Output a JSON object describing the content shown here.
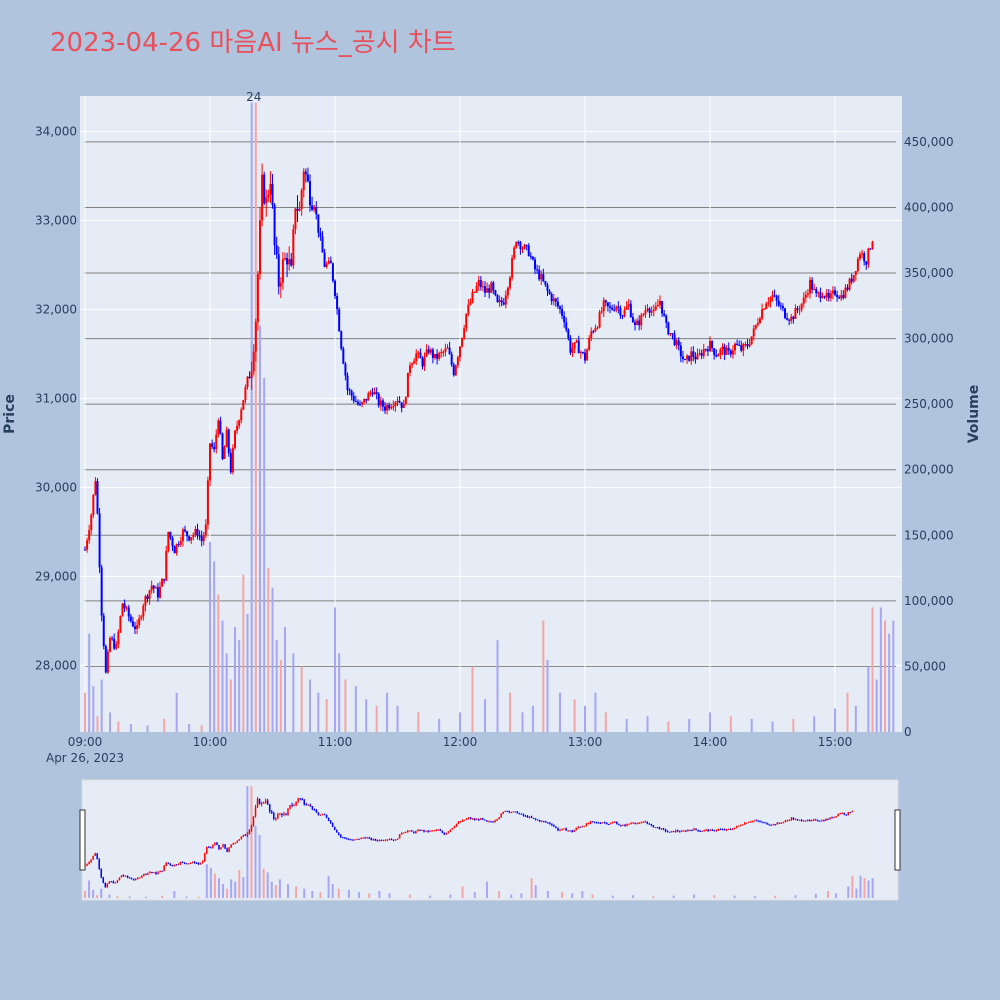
{
  "chart_data": {
    "type": "candlestick",
    "title": "2023-04-26 마음AI 뉴스_공시 차트",
    "ylabel": "Price",
    "y2label": "Volume",
    "ylim": [
      27250,
      34400
    ],
    "y2lim": [
      0,
      485000
    ],
    "price_ticks": [
      "28,000",
      "29,000",
      "30,000",
      "31,000",
      "32,000",
      "33,000",
      "34,000"
    ],
    "volume_ticks": [
      "0",
      "50,000",
      "100,000",
      "150,000",
      "200,000",
      "250,000",
      "300,000",
      "350,000",
      "400,000",
      "450,000"
    ],
    "x_ticks": [
      "09:00",
      "10:00",
      "11:00",
      "12:00",
      "13:00",
      "14:00",
      "15:00"
    ],
    "x_date_label": "Apr 26, 2023",
    "annotation": "24",
    "colors": {
      "up": "#ff0000",
      "down": "#0000ff",
      "up_volume": "#f4a6a6",
      "down_volume": "#a6a6f4",
      "plot_bg": "#e5ecf6",
      "grid": "#808080"
    },
    "price_path": [
      [
        "09:00",
        29300
      ],
      [
        "09:03",
        29700
      ],
      [
        "09:05",
        30100
      ],
      [
        "09:06",
        29700
      ],
      [
        "09:08",
        28600
      ],
      [
        "09:10",
        27900
      ],
      [
        "09:12",
        28300
      ],
      [
        "09:15",
        28200
      ],
      [
        "09:18",
        28700
      ],
      [
        "09:22",
        28500
      ],
      [
        "09:25",
        28400
      ],
      [
        "09:28",
        28700
      ],
      [
        "09:32",
        28900
      ],
      [
        "09:35",
        28800
      ],
      [
        "09:38",
        29000
      ],
      [
        "09:40",
        29500
      ],
      [
        "09:43",
        29300
      ],
      [
        "09:47",
        29500
      ],
      [
        "09:50",
        29450
      ],
      [
        "09:54",
        29500
      ],
      [
        "09:56",
        29400
      ],
      [
        "09:58",
        29550
      ],
      [
        "10:00",
        30500
      ],
      [
        "10:02",
        30400
      ],
      [
        "10:04",
        30800
      ],
      [
        "10:06",
        30300
      ],
      [
        "10:08",
        30600
      ],
      [
        "10:10",
        30200
      ],
      [
        "10:12",
        30600
      ],
      [
        "10:15",
        30900
      ],
      [
        "10:18",
        31200
      ],
      [
        "10:20",
        31400
      ],
      [
        "10:22",
        31900
      ],
      [
        "10:24",
        32900
      ],
      [
        "10:25",
        33400
      ],
      [
        "10:27",
        33200
      ],
      [
        "10:29",
        33500
      ],
      [
        "10:31",
        32700
      ],
      [
        "10:33",
        32300
      ],
      [
        "10:35",
        32500
      ],
      [
        "10:37",
        32600
      ],
      [
        "10:39",
        32400
      ],
      [
        "10:41",
        33200
      ],
      [
        "10:43",
        33100
      ],
      [
        "10:45",
        33600
      ],
      [
        "10:48",
        33300
      ],
      [
        "10:50",
        33200
      ],
      [
        "10:52",
        32900
      ],
      [
        "10:55",
        32500
      ],
      [
        "10:58",
        32500
      ],
      [
        "11:00",
        32200
      ],
      [
        "11:03",
        31600
      ],
      [
        "11:06",
        31100
      ],
      [
        "11:09",
        31000
      ],
      [
        "11:12",
        30900
      ],
      [
        "11:15",
        31000
      ],
      [
        "11:18",
        31100
      ],
      [
        "11:21",
        30950
      ],
      [
        "11:24",
        30900
      ],
      [
        "11:27",
        30950
      ],
      [
        "11:30",
        31000
      ],
      [
        "11:33",
        30900
      ],
      [
        "11:36",
        31400
      ],
      [
        "11:39",
        31500
      ],
      [
        "11:42",
        31400
      ],
      [
        "11:45",
        31550
      ],
      [
        "11:48",
        31450
      ],
      [
        "11:51",
        31500
      ],
      [
        "11:54",
        31550
      ],
      [
        "11:57",
        31300
      ],
      [
        "12:00",
        31600
      ],
      [
        "12:03",
        31950
      ],
      [
        "12:06",
        32150
      ],
      [
        "12:09",
        32300
      ],
      [
        "12:12",
        32200
      ],
      [
        "12:15",
        32250
      ],
      [
        "12:18",
        32050
      ],
      [
        "12:21",
        32100
      ],
      [
        "12:24",
        32400
      ],
      [
        "12:27",
        32800
      ],
      [
        "12:30",
        32700
      ],
      [
        "12:33",
        32650
      ],
      [
        "12:36",
        32450
      ],
      [
        "12:39",
        32350
      ],
      [
        "12:42",
        32200
      ],
      [
        "12:45",
        32100
      ],
      [
        "12:48",
        32000
      ],
      [
        "12:50",
        31900
      ],
      [
        "12:53",
        31550
      ],
      [
        "12:56",
        31600
      ],
      [
        "13:00",
        31450
      ],
      [
        "13:03",
        31750
      ],
      [
        "13:06",
        31850
      ],
      [
        "13:09",
        32050
      ],
      [
        "13:12",
        32000
      ],
      [
        "13:15",
        32050
      ],
      [
        "13:18",
        31950
      ],
      [
        "13:21",
        32050
      ],
      [
        "13:24",
        31800
      ],
      [
        "13:27",
        31900
      ],
      [
        "13:30",
        32050
      ],
      [
        "13:33",
        31950
      ],
      [
        "13:36",
        32100
      ],
      [
        "13:39",
        31800
      ],
      [
        "13:42",
        31700
      ],
      [
        "13:45",
        31550
      ],
      [
        "13:48",
        31400
      ],
      [
        "13:51",
        31500
      ],
      [
        "13:54",
        31450
      ],
      [
        "13:57",
        31550
      ],
      [
        "14:00",
        31600
      ],
      [
        "14:03",
        31500
      ],
      [
        "14:06",
        31550
      ],
      [
        "14:09",
        31500
      ],
      [
        "14:12",
        31600
      ],
      [
        "14:15",
        31550
      ],
      [
        "14:18",
        31600
      ],
      [
        "14:21",
        31750
      ],
      [
        "14:24",
        31950
      ],
      [
        "14:27",
        32100
      ],
      [
        "14:30",
        32150
      ],
      [
        "14:33",
        32050
      ],
      [
        "14:36",
        31950
      ],
      [
        "14:39",
        31900
      ],
      [
        "14:42",
        32000
      ],
      [
        "14:45",
        32100
      ],
      [
        "14:48",
        32300
      ],
      [
        "14:51",
        32150
      ],
      [
        "14:54",
        32200
      ],
      [
        "14:57",
        32100
      ],
      [
        "15:00",
        32200
      ],
      [
        "15:03",
        32150
      ],
      [
        "15:06",
        32250
      ],
      [
        "15:09",
        32400
      ],
      [
        "15:12",
        32650
      ],
      [
        "15:15",
        32550
      ],
      [
        "15:18",
        32800
      ]
    ],
    "volume_bars": [
      [
        "09:00",
        30000
      ],
      [
        "09:02",
        75000
      ],
      [
        "09:04",
        35000
      ],
      [
        "09:06",
        12000
      ],
      [
        "09:08",
        40000
      ],
      [
        "09:12",
        15000
      ],
      [
        "09:16",
        8000
      ],
      [
        "09:22",
        6000
      ],
      [
        "09:30",
        5000
      ],
      [
        "09:38",
        10000
      ],
      [
        "09:44",
        30000
      ],
      [
        "09:50",
        6000
      ],
      [
        "09:56",
        5000
      ],
      [
        "10:00",
        145000
      ],
      [
        "10:02",
        130000
      ],
      [
        "10:04",
        105000
      ],
      [
        "10:06",
        85000
      ],
      [
        "10:08",
        60000
      ],
      [
        "10:10",
        40000
      ],
      [
        "10:12",
        80000
      ],
      [
        "10:14",
        70000
      ],
      [
        "10:16",
        120000
      ],
      [
        "10:18",
        90000
      ],
      [
        "10:20",
        480000
      ],
      [
        "10:22",
        480000
      ],
      [
        "10:24",
        310000
      ],
      [
        "10:26",
        270000
      ],
      [
        "10:28",
        125000
      ],
      [
        "10:30",
        110000
      ],
      [
        "10:32",
        70000
      ],
      [
        "10:34",
        55000
      ],
      [
        "10:36",
        80000
      ],
      [
        "10:40",
        60000
      ],
      [
        "10:44",
        50000
      ],
      [
        "10:48",
        40000
      ],
      [
        "10:52",
        30000
      ],
      [
        "10:56",
        25000
      ],
      [
        "11:00",
        95000
      ],
      [
        "11:02",
        60000
      ],
      [
        "11:05",
        40000
      ],
      [
        "11:10",
        35000
      ],
      [
        "11:15",
        25000
      ],
      [
        "11:20",
        20000
      ],
      [
        "11:25",
        30000
      ],
      [
        "11:30",
        20000
      ],
      [
        "11:40",
        15000
      ],
      [
        "11:50",
        10000
      ],
      [
        "12:00",
        15000
      ],
      [
        "12:06",
        50000
      ],
      [
        "12:12",
        25000
      ],
      [
        "12:18",
        70000
      ],
      [
        "12:24",
        30000
      ],
      [
        "12:30",
        15000
      ],
      [
        "12:35",
        20000
      ],
      [
        "12:40",
        85000
      ],
      [
        "12:42",
        55000
      ],
      [
        "12:48",
        30000
      ],
      [
        "12:55",
        25000
      ],
      [
        "13:00",
        20000
      ],
      [
        "13:05",
        30000
      ],
      [
        "13:10",
        15000
      ],
      [
        "13:20",
        10000
      ],
      [
        "13:30",
        12000
      ],
      [
        "13:40",
        8000
      ],
      [
        "13:50",
        10000
      ],
      [
        "14:00",
        15000
      ],
      [
        "14:10",
        12000
      ],
      [
        "14:20",
        10000
      ],
      [
        "14:30",
        8000
      ],
      [
        "14:40",
        10000
      ],
      [
        "14:50",
        12000
      ],
      [
        "15:00",
        18000
      ],
      [
        "15:06",
        30000
      ],
      [
        "15:10",
        20000
      ],
      [
        "15:16",
        50000
      ],
      [
        "15:18",
        95000
      ],
      [
        "15:20",
        40000
      ],
      [
        "15:22",
        95000
      ],
      [
        "15:24",
        85000
      ],
      [
        "15:26",
        75000
      ],
      [
        "15:28",
        85000
      ]
    ]
  }
}
